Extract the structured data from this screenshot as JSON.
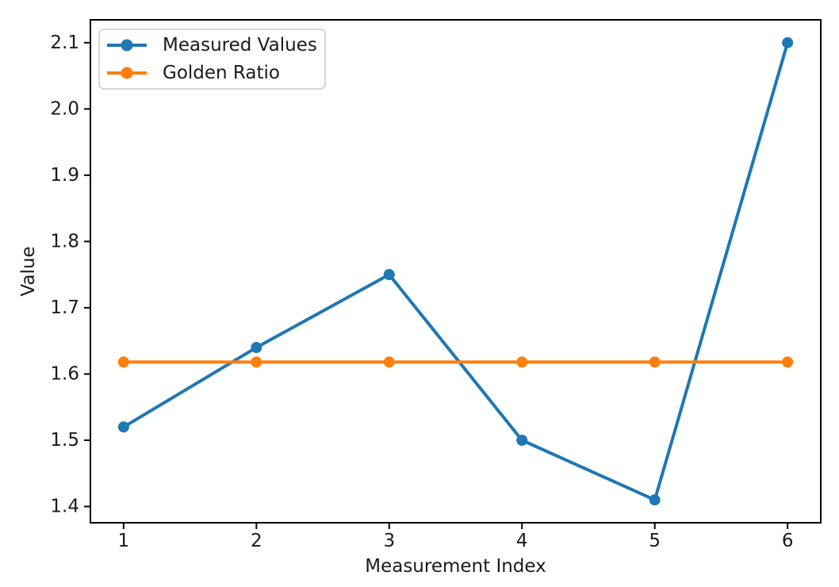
{
  "chart_data": {
    "type": "line",
    "xlabel": "Measurement Index",
    "ylabel": "Value",
    "x": [
      1,
      2,
      3,
      4,
      5,
      6
    ],
    "series": [
      {
        "name": "Measured Values",
        "values": [
          1.52,
          1.64,
          1.75,
          1.5,
          1.41,
          2.1
        ],
        "color": "#1f77b4",
        "marker": "circle"
      },
      {
        "name": "Golden Ratio",
        "values": [
          1.618,
          1.618,
          1.618,
          1.618,
          1.618,
          1.618
        ],
        "color": "#ff7f0e",
        "marker": "circle"
      }
    ],
    "xlim": [
      0.75,
      6.25
    ],
    "ylim": [
      1.3755,
      2.1345
    ],
    "xticks": [
      1,
      2,
      3,
      4,
      5,
      6
    ],
    "xtick_labels": [
      "1",
      "2",
      "3",
      "4",
      "5",
      "6"
    ],
    "yticks": [
      1.4,
      1.5,
      1.6,
      1.7,
      1.8,
      1.9,
      2.0,
      2.1
    ],
    "ytick_labels": [
      "1.4",
      "1.5",
      "1.6",
      "1.7",
      "1.8",
      "1.9",
      "2.0",
      "2.1"
    ],
    "grid": false,
    "legend": {
      "position": "upper-left",
      "entries": [
        "Measured Values",
        "Golden Ratio"
      ]
    },
    "colors": {
      "spine": "#000000",
      "text": "#1a1a1a",
      "legend_border": "#cccccc",
      "background": "#ffffff"
    }
  }
}
